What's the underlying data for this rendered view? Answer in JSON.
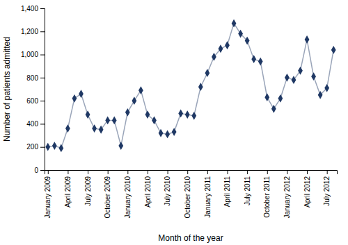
{
  "chart_data": {
    "type": "line",
    "xlabel": "Month of the year",
    "ylabel": "Number of patients admitted",
    "categories": [
      "January 2009",
      null,
      null,
      "April 2009",
      null,
      null,
      "July 2009",
      null,
      null,
      "October 2009",
      null,
      null,
      "January 2010",
      null,
      null,
      "April 2010",
      null,
      null,
      "July 2010",
      null,
      null,
      "October 2010",
      null,
      null,
      "January 2011",
      null,
      null,
      "April 2011",
      null,
      null,
      "July 2011",
      null,
      null,
      "October 2011",
      null,
      null,
      "January 2012",
      null,
      null,
      "April 2012",
      null,
      null,
      "July 2012",
      null
    ],
    "values": [
      200,
      210,
      190,
      360,
      620,
      660,
      480,
      360,
      350,
      430,
      430,
      210,
      500,
      600,
      690,
      480,
      430,
      320,
      310,
      330,
      490,
      480,
      470,
      720,
      840,
      980,
      1050,
      1080,
      1270,
      1180,
      1120,
      960,
      940,
      630,
      530,
      620,
      800,
      780,
      860,
      1130,
      810,
      650,
      710,
      1040
    ],
    "color": "#1f3864",
    "marker": "diamond",
    "ylim": [
      0,
      1400
    ],
    "yticks": [
      0,
      200,
      400,
      600,
      800,
      {
        "value": 1000,
        "label": "1,000"
      },
      {
        "value": 1200,
        "label": "1,200"
      },
      {
        "value": 1400,
        "label": "1,400"
      }
    ],
    "grid": false
  }
}
